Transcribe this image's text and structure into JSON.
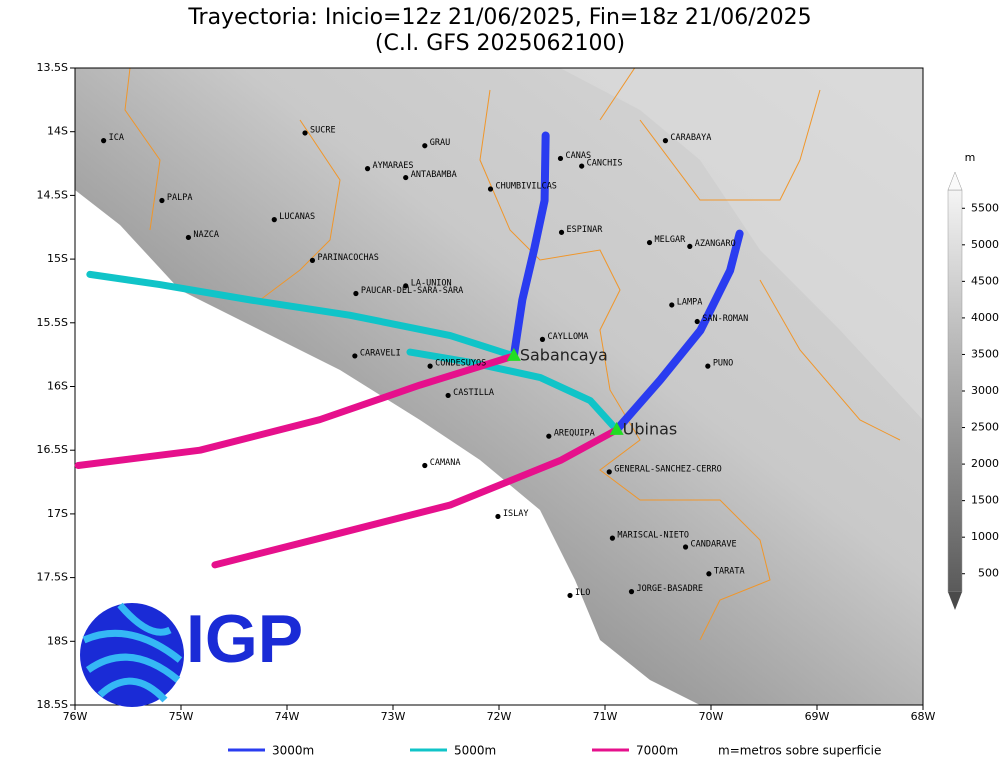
{
  "map": {
    "title": "Trayectoria: Inicio=12z 21/06/2025, Fin=18z 21/06/2025",
    "subtitle": "(C.I. GFS 2025062100)",
    "xlim": [
      -76,
      -68
    ],
    "ylim": [
      -18.5,
      -13.5
    ],
    "xticks": [
      {
        "value": -76,
        "label": "76W"
      },
      {
        "value": -75,
        "label": "75W"
      },
      {
        "value": -74,
        "label": "74W"
      },
      {
        "value": -73,
        "label": "73W"
      },
      {
        "value": -72,
        "label": "72W"
      },
      {
        "value": -71,
        "label": "71W"
      },
      {
        "value": -70,
        "label": "70W"
      },
      {
        "value": -69,
        "label": "69W"
      },
      {
        "value": -68,
        "label": "68W"
      }
    ],
    "yticks": [
      {
        "value": -13.5,
        "label": "13.5S"
      },
      {
        "value": -14,
        "label": "14S"
      },
      {
        "value": -14.5,
        "label": "14.5S"
      },
      {
        "value": -15,
        "label": "15S"
      },
      {
        "value": -15.5,
        "label": "15.5S"
      },
      {
        "value": -16,
        "label": "16S"
      },
      {
        "value": -16.5,
        "label": "16.5S"
      },
      {
        "value": -17,
        "label": "17S"
      },
      {
        "value": -17.5,
        "label": "17.5S"
      },
      {
        "value": -18,
        "label": "18S"
      },
      {
        "value": -18.5,
        "label": "18.5S"
      }
    ],
    "towns": [
      {
        "name": "ICA",
        "lon": -75.73,
        "lat": -14.07
      },
      {
        "name": "SUCRE",
        "lon": -73.83,
        "lat": -14.01
      },
      {
        "name": "GRAU",
        "lon": -72.7,
        "lat": -14.11
      },
      {
        "name": "AYMARAES",
        "lon": -73.24,
        "lat": -14.29
      },
      {
        "name": "ANTABAMBA",
        "lon": -72.88,
        "lat": -14.36
      },
      {
        "name": "CHUMBIVILCAS",
        "lon": -72.08,
        "lat": -14.45
      },
      {
        "name": "CANAS",
        "lon": -71.42,
        "lat": -14.21
      },
      {
        "name": "CANCHIS",
        "lon": -71.22,
        "lat": -14.27
      },
      {
        "name": "CARABAYA",
        "lon": -70.43,
        "lat": -14.07
      },
      {
        "name": "PALPA",
        "lon": -75.18,
        "lat": -14.54
      },
      {
        "name": "LUCANAS",
        "lon": -74.12,
        "lat": -14.69
      },
      {
        "name": "NAZCA",
        "lon": -74.93,
        "lat": -14.83
      },
      {
        "name": "ESPINAR",
        "lon": -71.41,
        "lat": -14.79
      },
      {
        "name": "MELGAR",
        "lon": -70.58,
        "lat": -14.87
      },
      {
        "name": "AZANGARO",
        "lon": -70.2,
        "lat": -14.9
      },
      {
        "name": "PARINACOCHAS",
        "lon": -73.76,
        "lat": -15.01
      },
      {
        "name": "LA-UNION",
        "lon": -72.88,
        "lat": -15.21
      },
      {
        "name": "PAUCAR-DEL-SARA-SARA",
        "lon": -73.35,
        "lat": -15.27
      },
      {
        "name": "LAMPA",
        "lon": -70.37,
        "lat": -15.36
      },
      {
        "name": "SAN-ROMAN",
        "lon": -70.13,
        "lat": -15.49
      },
      {
        "name": "CAYLLOMA",
        "lon": -71.59,
        "lat": -15.63
      },
      {
        "name": "CARAVELI",
        "lon": -73.36,
        "lat": -15.76
      },
      {
        "name": "CONDESUYOS",
        "lon": -72.65,
        "lat": -15.84
      },
      {
        "name": "PUNO",
        "lon": -70.03,
        "lat": -15.84
      },
      {
        "name": "CASTILLA",
        "lon": -72.48,
        "lat": -16.07
      },
      {
        "name": "AREQUIPA",
        "lon": -71.53,
        "lat": -16.39
      },
      {
        "name": "CAMANA",
        "lon": -72.7,
        "lat": -16.62
      },
      {
        "name": "GENERAL-SANCHEZ-CERRO",
        "lon": -70.96,
        "lat": -16.67
      },
      {
        "name": "ISLAY",
        "lon": -72.01,
        "lat": -17.02
      },
      {
        "name": "MARISCAL-NIETO",
        "lon": -70.93,
        "lat": -17.19
      },
      {
        "name": "CANDARAVE",
        "lon": -70.24,
        "lat": -17.26
      },
      {
        "name": "TARATA",
        "lon": -70.02,
        "lat": -17.47
      },
      {
        "name": "ILO",
        "lon": -71.33,
        "lat": -17.64
      },
      {
        "name": "JORGE-BASADRE",
        "lon": -70.75,
        "lat": -17.61
      }
    ],
    "volcanoes": [
      {
        "name": "Sabancaya",
        "lon": -71.86,
        "lat": -15.76
      },
      {
        "name": "Ubinas",
        "lon": -70.89,
        "lat": -16.34
      }
    ],
    "levels": [
      {
        "label": "3000m",
        "color": "#2a3cf0",
        "paths": [
          {
            "lon": [
              -71.86,
              -71.78,
              -71.67,
              -71.57,
              -71.56
            ],
            "lat": [
              -15.76,
              -15.32,
              -14.93,
              -14.54,
              -14.03
            ]
          },
          {
            "lon": [
              -70.89,
              -70.48,
              -70.1,
              -69.82,
              -69.73
            ],
            "lat": [
              -16.34,
              -15.95,
              -15.56,
              -15.09,
              -14.8
            ]
          }
        ]
      },
      {
        "label": "5000m",
        "color": "#10c4c8",
        "paths": [
          {
            "lon": [
              -71.86,
              -72.46,
              -73.41,
              -74.35,
              -75.2,
              -75.86
            ],
            "lat": [
              -15.76,
              -15.6,
              -15.44,
              -15.32,
              -15.2,
              -15.12
            ]
          },
          {
            "lon": [
              -70.89,
              -71.14,
              -71.61,
              -72.27,
              -72.84
            ],
            "lat": [
              -16.34,
              -16.11,
              -15.93,
              -15.81,
              -15.73
            ]
          }
        ]
      },
      {
        "label": "7000m",
        "color": "#e6108c",
        "paths": [
          {
            "lon": [
              -71.86,
              -72.75,
              -73.69,
              -74.82,
              -75.97
            ],
            "lat": [
              -15.76,
              -15.99,
              -16.26,
              -16.5,
              -16.62
            ]
          },
          {
            "lon": [
              -70.89,
              -71.42,
              -72.46,
              -73.59,
              -74.68
            ],
            "lat": [
              -16.34,
              -16.58,
              -16.93,
              -17.17,
              -17.4
            ]
          }
        ]
      }
    ],
    "legend_note": "m=metros sobre superficie",
    "colorbar": {
      "unit": "m",
      "lim": [
        250,
        5750
      ],
      "ticks": [
        500,
        1000,
        1500,
        2000,
        2500,
        3000,
        3500,
        4000,
        4500,
        5000,
        5500
      ]
    },
    "logo_text": "IGP"
  }
}
